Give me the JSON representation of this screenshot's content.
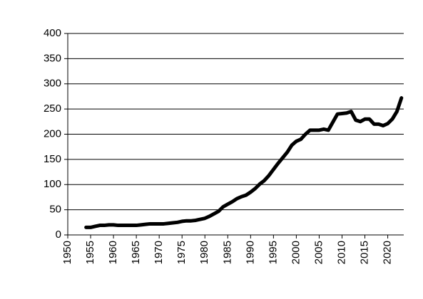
{
  "chart_data": {
    "type": "line",
    "x": [
      1954,
      1955,
      1956,
      1957,
      1958,
      1959,
      1960,
      1961,
      1962,
      1963,
      1964,
      1965,
      1966,
      1967,
      1968,
      1969,
      1970,
      1971,
      1972,
      1973,
      1974,
      1975,
      1976,
      1977,
      1978,
      1979,
      1980,
      1981,
      1982,
      1983,
      1984,
      1985,
      1986,
      1987,
      1988,
      1989,
      1990,
      1991,
      1992,
      1993,
      1994,
      1995,
      1996,
      1997,
      1998,
      1999,
      2000,
      2001,
      2002,
      2003,
      2004,
      2005,
      2006,
      2007,
      2008,
      2009,
      2010,
      2011,
      2012,
      2013,
      2014,
      2015,
      2016,
      2017,
      2018,
      2019,
      2020,
      2021,
      2022,
      2023
    ],
    "values": [
      15,
      15,
      17,
      19,
      19,
      20,
      20,
      19,
      19,
      19,
      19,
      19,
      20,
      21,
      22,
      22,
      22,
      22,
      23,
      24,
      25,
      27,
      28,
      28,
      29,
      31,
      33,
      37,
      42,
      47,
      56,
      61,
      66,
      72,
      76,
      79,
      85,
      92,
      101,
      108,
      118,
      130,
      142,
      153,
      164,
      178,
      186,
      190,
      200,
      208,
      208,
      208,
      210,
      208,
      224,
      240,
      241,
      242,
      245,
      228,
      225,
      230,
      230,
      220,
      220,
      217,
      221,
      230,
      245,
      272
    ],
    "color": "#000000",
    "xlim": [
      1950,
      2023.5
    ],
    "xticks": [
      1950,
      1955,
      1960,
      1965,
      1970,
      1975,
      1980,
      1985,
      1990,
      1995,
      2000,
      2005,
      2010,
      2015,
      2020
    ],
    "ylim": [
      0,
      400
    ],
    "yticks": [
      0,
      50,
      100,
      150,
      200,
      250,
      300,
      350,
      400
    ],
    "grid": true
  }
}
